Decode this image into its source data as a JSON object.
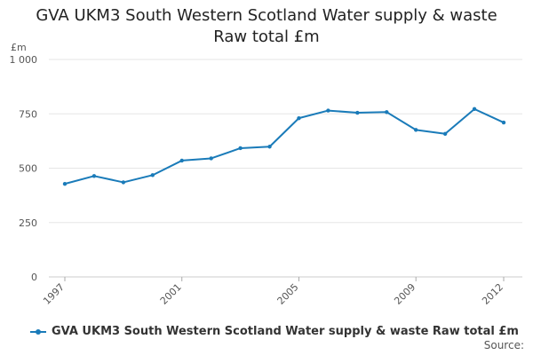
{
  "chart_data": {
    "type": "line",
    "title_lines": [
      "GVA UKM3 South Western Scotland Water supply & waste",
      "Raw total £m"
    ],
    "ylabel": "£m",
    "ylim": [
      0,
      1000
    ],
    "yticks": [
      0,
      250,
      500,
      750,
      1000
    ],
    "ytick_labels": [
      "0",
      "250",
      "500",
      "750",
      "1 000"
    ],
    "xlim": [
      1997,
      2012
    ],
    "xticks": [
      1997,
      2001,
      2005,
      2009,
      2012
    ],
    "xtick_labels": [
      "1997",
      "2001",
      "2005",
      "2009",
      "2012"
    ],
    "grid": true,
    "series": [
      {
        "name": "GVA UKM3 South Western Scotland Water supply & waste Raw total £m",
        "color": "#1a7bb9",
        "x": [
          1997,
          1998,
          1999,
          2000,
          2001,
          2002,
          2003,
          2004,
          2005,
          2006,
          2007,
          2008,
          2009,
          2010,
          2011,
          2012
        ],
        "values": [
          428,
          464,
          435,
          468,
          535,
          545,
          592,
          599,
          730,
          765,
          755,
          758,
          676,
          658,
          772,
          710
        ]
      }
    ],
    "legend_position": "bottom",
    "source_label": "Source:"
  }
}
